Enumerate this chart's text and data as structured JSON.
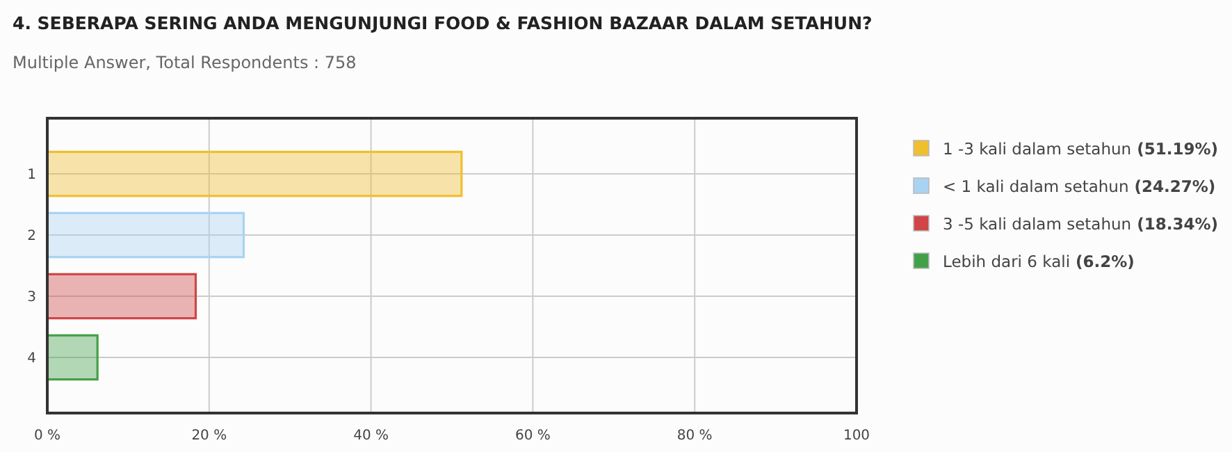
{
  "chart_data": {
    "type": "bar",
    "orientation": "horizontal",
    "title": "4. SEBERAPA SERING ANDA MENGUNJUNGI FOOD & FASHION BAZAAR DALAM SETAHUN?",
    "subtitle": "Multiple Answer, Total Respondents : 758",
    "categories": [
      "1",
      "2",
      "3",
      "4"
    ],
    "series": [
      {
        "name": "1 -3 kali dalam setahun (51.19%)",
        "color": "#efbf2f",
        "values": [
          51.19,
          null,
          null,
          null
        ]
      },
      {
        "name": "< 1 kali dalam setahun (24.27%)",
        "color": "#a9d3f3",
        "values": [
          null,
          24.27,
          null,
          null
        ]
      },
      {
        "name": "3 -5 kali dalam setahun (18.34%)",
        "color": "#d04545",
        "values": [
          null,
          null,
          18.34,
          null
        ]
      },
      {
        "name": "Lebih dari 6 kali (6.2%)",
        "color": "#44a048",
        "values": [
          null,
          null,
          null,
          6.2
        ]
      }
    ],
    "xlim": [
      0,
      100
    ],
    "xticks": [
      {
        "value": 0,
        "label": "0 %"
      },
      {
        "value": 20,
        "label": "20 %"
      },
      {
        "value": 40,
        "label": "40 %"
      },
      {
        "value": 60,
        "label": "60 %"
      },
      {
        "value": 80,
        "label": "80 %"
      },
      100
    ],
    "grid": true,
    "legend": "right"
  }
}
